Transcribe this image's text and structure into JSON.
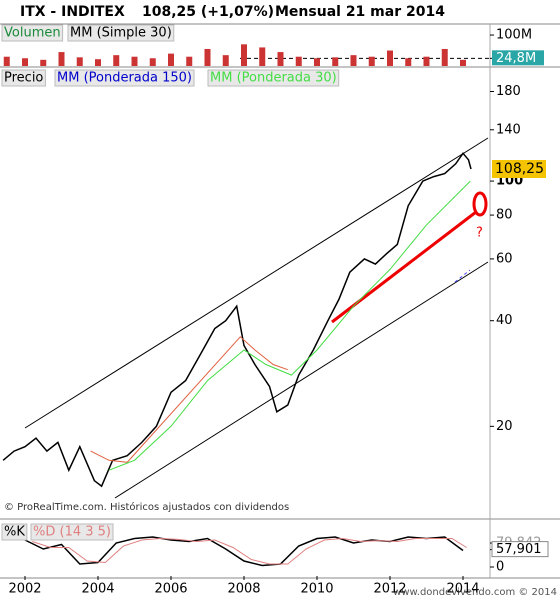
{
  "header": {
    "ticker": "ITX - INDITEX",
    "change": "108,25 (+1,07%)",
    "period": "Mensual  21 mar 2014"
  },
  "footer": {
    "source": "© ProRealTime.com. Históricos ajustados con dividendos",
    "site": "www.dondevivendo.com © 2014"
  },
  "chart_data": [
    {
      "type": "bar",
      "xlim": [
        2001.315,
        2014.74
      ],
      "ylim": [
        0,
        126
      ],
      "yticks": [
        {
          "value": 100,
          "label": "100M"
        },
        {
          "value": 24.8,
          "label": "24,8M"
        }
      ],
      "series": [
        {
          "name": "Volumen",
          "color": "#cc3333",
          "x": [
            2001.5,
            2002,
            2002.5,
            2003,
            2003.5,
            2004,
            2004.5,
            2005,
            2005.5,
            2006,
            2006.5,
            2007,
            2007.5,
            2008,
            2008.5,
            2009,
            2009.5,
            2010,
            2010.5,
            2011,
            2011.5,
            2012,
            2012.5,
            2013,
            2013.5,
            2014
          ],
          "values": [
            30,
            25,
            20,
            45,
            28,
            22,
            35,
            30,
            25,
            40,
            30,
            55,
            35,
            70,
            60,
            45,
            30,
            25,
            28,
            35,
            30,
            50,
            25,
            30,
            55,
            20
          ]
        },
        {
          "name": "MM (Simple 30)",
          "color": "#000000",
          "x": [],
          "values": []
        }
      ]
    },
    {
      "type": "line",
      "log": true,
      "xlim": [
        2001.315,
        2014.74
      ],
      "ylim": [
        11.4,
        210
      ],
      "yticks": [
        20,
        40,
        60,
        80,
        100,
        140,
        180
      ],
      "price_tag": "108,25",
      "annotation": "?",
      "series": [
        {
          "name": "Precio",
          "color": "#000000",
          "x": [
            2001.4,
            2001.7,
            2002.0,
            2002.3,
            2002.6,
            2002.9,
            2003.2,
            2003.5,
            2003.9,
            2004.1,
            2004.4,
            2004.8,
            2005.2,
            2005.6,
            2006.0,
            2006.4,
            2006.8,
            2007.2,
            2007.5,
            2007.8,
            2008.0,
            2008.3,
            2008.7,
            2008.9,
            2009.2,
            2009.5,
            2009.9,
            2010.3,
            2010.6,
            2010.9,
            2011.3,
            2011.6,
            2011.9,
            2012.2,
            2012.5,
            2012.9,
            2013.2,
            2013.5,
            2013.8,
            2014.0,
            2014.15,
            2014.22
          ],
          "values": [
            16,
            17,
            17.5,
            18.5,
            17,
            18,
            15,
            17.5,
            14,
            13.5,
            16,
            16.5,
            18,
            20,
            25,
            27,
            32,
            38,
            40,
            44,
            34,
            30,
            26,
            22,
            23,
            28,
            33,
            40,
            46,
            55,
            60,
            58,
            62,
            66,
            85,
            100,
            103,
            105,
            112,
            120,
            115,
            108.25
          ]
        },
        {
          "name": "MM (Ponderada 150)",
          "color": "#e06040",
          "x": [
            2003.8,
            2004.3,
            2004.8,
            2007.9,
            2008.3,
            2008.8,
            2009.2
          ],
          "values": [
            17,
            16,
            15.8,
            36,
            33,
            30,
            29
          ]
        },
        {
          "name": "MM (Ponderada 30)",
          "color": "#44dd44",
          "x": [
            2004.3,
            2005,
            2006,
            2007,
            2008,
            2008.6,
            2009.3,
            2010,
            2011,
            2012,
            2013,
            2014.2
          ],
          "values": [
            15,
            16,
            20,
            27,
            33,
            30,
            28,
            33,
            44,
            56,
            75,
            100
          ]
        }
      ]
    },
    {
      "type": "line",
      "xlim": [
        2001.315,
        2014.74
      ],
      "ylim": [
        -30,
        150
      ],
      "yticks": [
        {
          "value": 79.842,
          "label": "79,842"
        },
        {
          "value": 57.901,
          "label": "57,901"
        },
        0
      ],
      "xticks": [
        2002,
        2004,
        2006,
        2008,
        2010,
        2012,
        2014
      ],
      "series": [
        {
          "name": "%K",
          "color": "#000000",
          "x": [
            2002,
            2002.5,
            2003,
            2003.5,
            2004,
            2004.5,
            2005,
            2005.5,
            2006,
            2006.5,
            2007,
            2007.5,
            2008,
            2008.5,
            2009,
            2009.5,
            2010,
            2010.5,
            2011,
            2011.5,
            2012,
            2012.5,
            2013,
            2013.5,
            2014
          ],
          "values": [
            90,
            60,
            75,
            10,
            15,
            80,
            95,
            100,
            90,
            85,
            95,
            60,
            20,
            5,
            10,
            70,
            95,
            100,
            80,
            90,
            85,
            100,
            95,
            100,
            55
          ]
        },
        {
          "name": "%D (14 3 5)",
          "color": "#e08080",
          "x": [
            2002.2,
            2002.7,
            2003.2,
            2003.7,
            2004.2,
            2004.7,
            2005.2,
            2005.7,
            2006.2,
            2006.7,
            2007.2,
            2007.7,
            2008.2,
            2008.7,
            2009.2,
            2009.7,
            2010.2,
            2010.7,
            2011.2,
            2011.7,
            2012.2,
            2012.7,
            2013.2,
            2013.7,
            2014.1
          ],
          "values": [
            85,
            65,
            65,
            20,
            15,
            70,
            90,
            95,
            92,
            85,
            90,
            65,
            25,
            10,
            10,
            60,
            90,
            95,
            85,
            88,
            85,
            95,
            95,
            95,
            65
          ]
        }
      ]
    }
  ]
}
